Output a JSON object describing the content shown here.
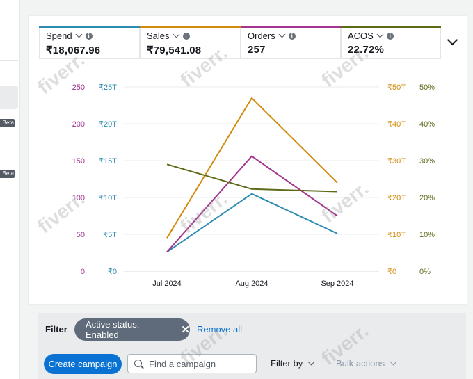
{
  "sidebar": {
    "beta_badges": [
      "Beta",
      "Beta"
    ]
  },
  "metrics": [
    {
      "label": "Spend",
      "value": "₹18,067.96",
      "color": "#2e8bb0"
    },
    {
      "label": "Sales",
      "value": "₹79,541.08",
      "color": "#d18a0b"
    },
    {
      "label": "Orders",
      "value": "257",
      "color": "#a3348f"
    },
    {
      "label": "ACOS",
      "value": "22.72%",
      "color": "#5f6a19"
    }
  ],
  "chart_data": {
    "type": "line",
    "categories": [
      "Jul 2024",
      "Aug 2024",
      "Sep 2024"
    ],
    "axes": {
      "orders": {
        "ticks": [
          "250",
          "200",
          "150",
          "100",
          "50",
          "0"
        ],
        "color": "#a3348f"
      },
      "spend": {
        "ticks": [
          "₹25T",
          "₹20T",
          "₹15T",
          "₹10T",
          "₹5T",
          "₹0"
        ],
        "color": "#2e8bb0"
      },
      "sales": {
        "ticks": [
          "₹50T",
          "₹40T",
          "₹30T",
          "₹20T",
          "₹10T",
          "₹0"
        ],
        "color": "#d18a0b"
      },
      "acos": {
        "ticks": [
          "50%",
          "40%",
          "30%",
          "20%",
          "10%",
          "0%"
        ],
        "color": "#5f6a19"
      }
    },
    "series": [
      {
        "name": "Spend",
        "unit": "₹T",
        "values": [
          2.6,
          10.5,
          5.1
        ],
        "ylim": [
          0,
          25
        ],
        "color": "#2e8bb0"
      },
      {
        "name": "Sales",
        "unit": "₹T",
        "values": [
          9.0,
          47.0,
          24.0
        ],
        "ylim": [
          0,
          50
        ],
        "color": "#d18a0b"
      },
      {
        "name": "Orders",
        "values": [
          26,
          156,
          75
        ],
        "ylim": [
          0,
          250
        ],
        "color": "#a3348f"
      },
      {
        "name": "ACOS",
        "unit": "%",
        "values": [
          29,
          22.3,
          21.6
        ],
        "ylim": [
          0,
          50
        ],
        "color": "#5f6a19"
      }
    ],
    "grid": true
  },
  "filter": {
    "label": "Filter",
    "token": "Active status: Enabled",
    "token_close": "✕",
    "remove_all": "Remove all"
  },
  "toolbar": {
    "create_campaign": "Create campaign",
    "search_placeholder": "Find a campaign",
    "filter_by": "Filter by",
    "bulk_actions": "Bulk actions"
  },
  "watermark": "fiverr."
}
